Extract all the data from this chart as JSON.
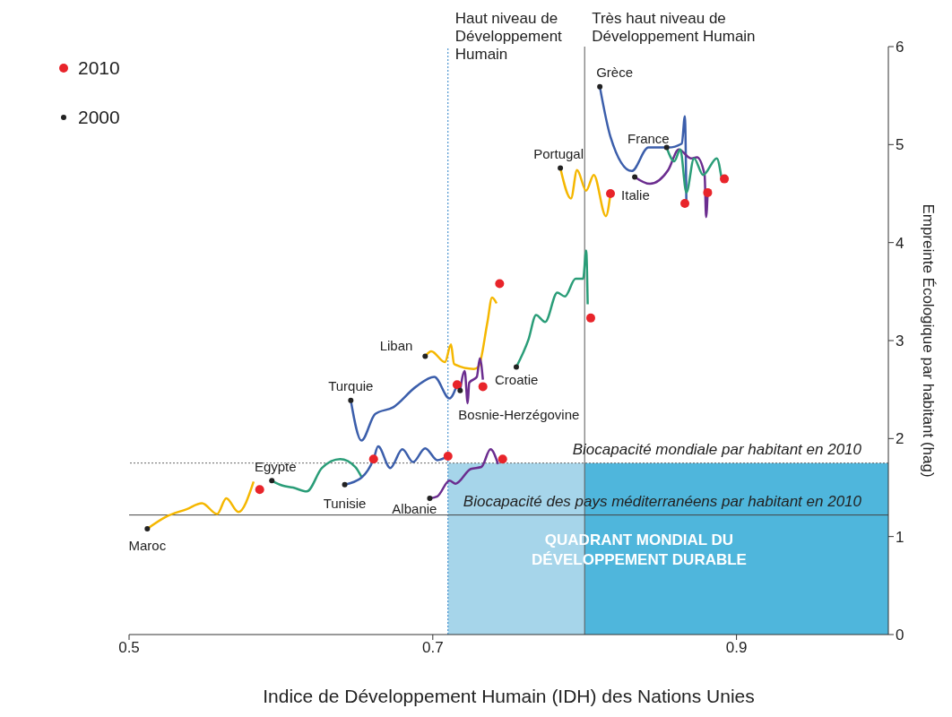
{
  "chart_data": {
    "type": "line",
    "xlabel": "Indice de Développement Humain (IDH) des Nations Unies",
    "ylabel": "Empreinte Écologique par habitant (hag)",
    "xlim": [
      0.5,
      1.0
    ],
    "xticks": [
      0.5,
      0.7,
      0.9
    ],
    "ylim": [
      0,
      6
    ],
    "yticks": [
      0,
      1,
      2,
      3,
      4,
      5,
      6
    ],
    "legend": "top left",
    "series": [
      {
        "type": "area",
        "color": "#a6d5ea",
        "x": [
          0.71,
          0.8
        ],
        "values": [
          1.75,
          1.75
        ]
      },
      {
        "type": "area",
        "color": "#4fb6dc",
        "x": [
          0.8,
          1.0
        ],
        "values": [
          1.75,
          1.75
        ]
      },
      {
        "name": "Maroc",
        "color": "#f5b700",
        "x": [
          0.512,
          0.524,
          0.538,
          0.548,
          0.558,
          0.564,
          0.572,
          0.582
        ],
        "values": [
          1.08,
          1.2,
          1.28,
          1.34,
          1.23,
          1.39,
          1.25,
          1.56
        ]
      },
      {
        "name": "Egypte",
        "color": "#2a9d78",
        "x": [
          0.594,
          0.601,
          0.608,
          0.617,
          0.627,
          0.639,
          0.649,
          0.653
        ],
        "values": [
          1.57,
          1.52,
          1.5,
          1.46,
          1.7,
          1.79,
          1.71,
          1.61
        ]
      },
      {
        "name": "Tunisie",
        "color": "#3b5eab",
        "x": [
          0.642,
          0.653,
          0.661,
          0.664,
          0.672,
          0.68,
          0.687,
          0.695,
          0.703,
          0.71
        ],
        "values": [
          1.53,
          1.6,
          1.79,
          1.92,
          1.7,
          1.89,
          1.76,
          1.9,
          1.78,
          1.82
        ]
      },
      {
        "name": "Turquie",
        "color": "#3b5eab",
        "x": [
          0.646,
          0.653,
          0.662,
          0.674,
          0.689,
          0.701,
          0.711,
          0.716
        ],
        "values": [
          2.39,
          1.98,
          2.25,
          2.32,
          2.53,
          2.63,
          2.41,
          2.55
        ]
      },
      {
        "name": "Liban",
        "color": "#f5b700",
        "x": [
          0.695,
          0.699,
          0.708,
          0.712,
          0.714,
          0.727,
          0.73,
          0.736,
          0.739,
          0.742
        ],
        "values": [
          2.84,
          2.89,
          2.78,
          2.96,
          2.76,
          2.71,
          2.73,
          3.19,
          3.44,
          3.38
        ]
      },
      {
        "name": "Bosnie-Herzégovine",
        "color": "#6b2d8f",
        "x": [
          0.718,
          0.721,
          0.723,
          0.724,
          0.729,
          0.731,
          0.733
        ],
        "values": [
          2.49,
          2.69,
          2.36,
          2.57,
          2.63,
          2.82,
          2.6
        ]
      },
      {
        "name": "Croatie",
        "color": "#2a9d78",
        "x": [
          0.755,
          0.763,
          0.768,
          0.774,
          0.782,
          0.787,
          0.794,
          0.799,
          0.801,
          0.802
        ],
        "values": [
          2.73,
          3.01,
          3.26,
          3.19,
          3.49,
          3.45,
          3.63,
          3.63,
          3.92,
          3.37
        ]
      },
      {
        "name": "Albanie",
        "color": "#6b2d8f",
        "x": [
          0.698,
          0.703,
          0.711,
          0.715,
          0.725,
          0.732,
          0.738,
          0.743
        ],
        "values": [
          1.39,
          1.41,
          1.57,
          1.54,
          1.69,
          1.71,
          1.89,
          1.74
        ]
      },
      {
        "name": "Portugal",
        "color": "#f5b700",
        "x": [
          0.784,
          0.791,
          0.795,
          0.801,
          0.806,
          0.814,
          0.817
        ],
        "values": [
          4.76,
          4.45,
          4.74,
          4.53,
          4.69,
          4.27,
          4.5
        ]
      },
      {
        "name": "Grèce",
        "color": "#3b5eab",
        "x": [
          0.81,
          0.817,
          0.831,
          0.842,
          0.855,
          0.864,
          0.866,
          0.867
        ],
        "values": [
          5.59,
          5.08,
          4.73,
          4.97,
          4.97,
          5.01,
          5.29,
          4.4
        ]
      },
      {
        "name": "Italie",
        "color": "#6b2d8f",
        "x": [
          0.833,
          0.843,
          0.855,
          0.862,
          0.87,
          0.874,
          0.879,
          0.88,
          0.881
        ],
        "values": [
          4.67,
          4.6,
          4.74,
          4.95,
          4.86,
          4.87,
          4.69,
          4.26,
          4.51
        ]
      },
      {
        "name": "France",
        "color": "#2a9d78",
        "x": [
          0.854,
          0.859,
          0.863,
          0.867,
          0.872,
          0.878,
          0.887,
          0.89
        ],
        "values": [
          4.97,
          4.83,
          4.95,
          4.51,
          4.86,
          4.69,
          4.86,
          4.67
        ]
      },
      {
        "name": "2010",
        "type": "scatter",
        "color": "#e8242a",
        "x": [
          0.586,
          0.661,
          0.71,
          0.716,
          0.744,
          0.733,
          0.804,
          0.746,
          0.817,
          0.866,
          0.881,
          0.892
        ],
        "values": [
          1.48,
          1.79,
          1.82,
          2.55,
          3.58,
          2.53,
          3.23,
          1.79,
          4.5,
          4.4,
          4.51,
          4.65
        ]
      },
      {
        "name": "2000",
        "type": "scatter",
        "color": "#222222",
        "x": [
          0.512,
          0.594,
          0.642,
          0.646,
          0.695,
          0.718,
          0.755,
          0.698,
          0.784,
          0.81,
          0.833,
          0.854
        ],
        "values": [
          1.08,
          1.57,
          1.53,
          2.39,
          2.84,
          2.49,
          2.73,
          1.39,
          4.76,
          5.59,
          4.67,
          4.97
        ]
      }
    ],
    "ref_lines": [
      {
        "axis": "x",
        "value": 0.71,
        "label": "Haut niveau de Développement Humain",
        "color": "#2a7fc6",
        "line_style": "dotted"
      },
      {
        "axis": "x",
        "value": 0.8,
        "label": "Très haut niveau de Développement Humain",
        "color": "#555555",
        "line_style": "solid"
      },
      {
        "axis": "y",
        "value": 1.75,
        "label": "Biocapacité mondiale par habitant en 2010",
        "color": "#666666",
        "line_style": "dotted"
      },
      {
        "axis": "y",
        "value": 1.22,
        "label": "Biocapacité des pays méditerranéens par habitant en 2010",
        "color": "#444444",
        "line_style": "solid"
      }
    ],
    "annotations": [
      "QUADRANT MONDIAL DU DÉVELOPPEMENT DURABLE"
    ]
  }
}
